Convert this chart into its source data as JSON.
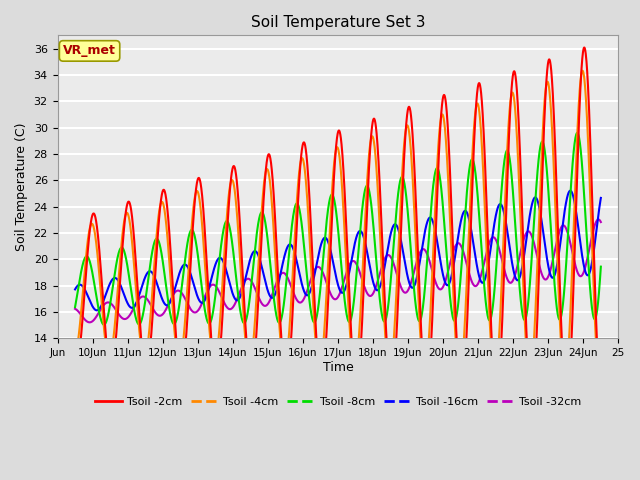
{
  "title": "Soil Temperature Set 3",
  "xlabel": "Time",
  "ylabel": "Soil Temperature (C)",
  "ylim": [
    14,
    37
  ],
  "xlim": [
    -0.5,
    15.5
  ],
  "x_tick_labels": [
    "Jun",
    "10Jun",
    "11Jun",
    "12Jun",
    "13Jun",
    "14Jun",
    "15Jun",
    "16Jun",
    "17Jun",
    "18Jun",
    "19Jun",
    "20Jun",
    "21Jun",
    "22Jun",
    "23Jun",
    "24Jun",
    "25"
  ],
  "x_tick_positions": [
    -0.5,
    0.5,
    1.5,
    2.5,
    3.5,
    4.5,
    5.5,
    6.5,
    7.5,
    8.5,
    9.5,
    10.5,
    11.5,
    12.5,
    13.5,
    14.5,
    15.5
  ],
  "y_ticks": [
    14,
    16,
    18,
    20,
    22,
    24,
    26,
    28,
    30,
    32,
    34,
    36
  ],
  "colors": {
    "Tsoil -2cm": "#FF0000",
    "Tsoil -4cm": "#FF8800",
    "Tsoil -8cm": "#00DD00",
    "Tsoil -16cm": "#0000FF",
    "Tsoil -32cm": "#BB00BB"
  },
  "lw": 1.5,
  "bg_color": "#DCDCDC",
  "plot_bg_color": "#EBEBEB",
  "grid_color": "#FFFFFF",
  "annotation_text": "VR_met",
  "annotation_bg": "#FFFF99",
  "annotation_fg": "#AA0000"
}
